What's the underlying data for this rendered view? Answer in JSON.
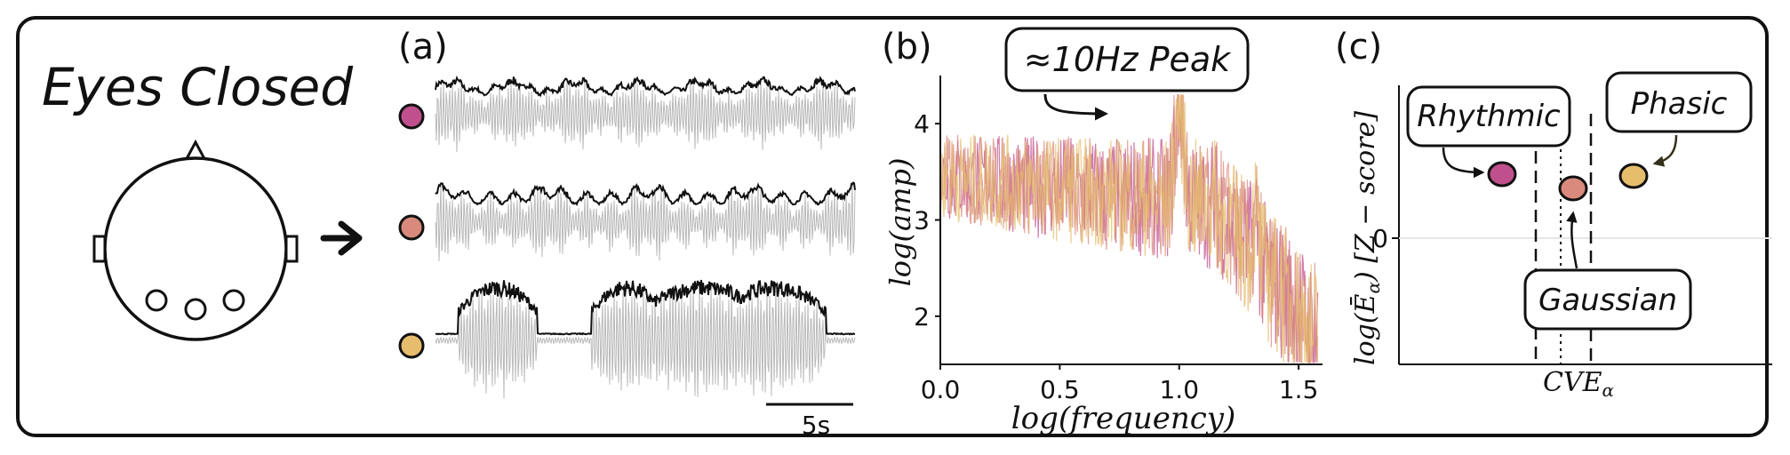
{
  "headset": {
    "title": "Eyes Closed"
  },
  "panels": {
    "a": {
      "label": "(a)",
      "scale_bar": "5s",
      "channel_colors": [
        "#c04f8d",
        "#d98a7c",
        "#e6bd6c"
      ]
    },
    "b": {
      "label": "(b)",
      "callout": "≈10Hz Peak",
      "chart_data": {
        "type": "line",
        "xlabel": "log(frequency)",
        "ylabel": "log(amp)",
        "xlim": [
          0.0,
          1.6
        ],
        "ylim": [
          1.5,
          4.5
        ],
        "x_ticks": [
          "0.0",
          "0.5",
          "1.0",
          "1.5"
        ],
        "y_ticks": [
          "2",
          "3",
          "4"
        ],
        "peak": {
          "x": 1.0,
          "y": 4.3
        },
        "series_colors": [
          "#c04f8d",
          "#d98a7c",
          "#e6bd6c"
        ]
      }
    },
    "c": {
      "label": "(c)",
      "ylabel_main": "log(Ē",
      "ylabel_sub": "α",
      "ylabel_tail": ") [Z − score]",
      "y_zero_label": "0",
      "xlabel_main": "CVE",
      "xlabel_sub": "α",
      "boxes": {
        "rhythmic": "Rhythmic",
        "phasic": "Phasic",
        "gaussian": "Gaussian"
      },
      "point_colors": {
        "rhythmic": "#c04f8d",
        "gaussian": "#d98a7c",
        "phasic": "#e6bd6c"
      }
    }
  }
}
